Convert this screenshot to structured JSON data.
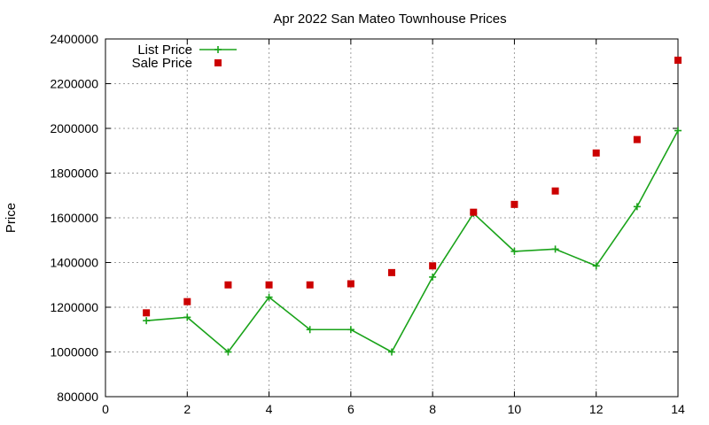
{
  "chart_data": {
    "type": "line",
    "title": "Apr 2022 San Mateo Townhouse Prices",
    "xlabel": "",
    "ylabel": "Price",
    "xlim": [
      0,
      14
    ],
    "ylim": [
      800000,
      2400000
    ],
    "x_ticks": [
      "0",
      "2",
      "4",
      "6",
      "8",
      "10",
      "12",
      "14"
    ],
    "y_ticks": [
      "800000",
      "1000000",
      "1200000",
      "1400000",
      "1600000",
      "1800000",
      "2000000",
      "2200000",
      "2400000"
    ],
    "grid": true,
    "legend_position": "top-left",
    "series": [
      {
        "name": "List Price",
        "style": "line-with-plus-markers",
        "color": "#1aa31a",
        "x": [
          1,
          2,
          3,
          4,
          5,
          6,
          7,
          8,
          9,
          10,
          11,
          12,
          13,
          14
        ],
        "values": [
          1140000,
          1155000,
          1000000,
          1245000,
          1100000,
          1100000,
          1000000,
          1335000,
          1620000,
          1450000,
          1460000,
          1385000,
          1650000,
          1990000
        ]
      },
      {
        "name": "Sale Price",
        "style": "square-markers",
        "color": "#cc0000",
        "x": [
          1,
          2,
          3,
          4,
          5,
          6,
          7,
          8,
          9,
          10,
          11,
          12,
          13,
          14
        ],
        "values": [
          1175000,
          1225000,
          1300000,
          1300000,
          1300000,
          1305000,
          1355000,
          1385000,
          1625000,
          1660000,
          1720000,
          1890000,
          1950000,
          2305000
        ]
      }
    ]
  }
}
